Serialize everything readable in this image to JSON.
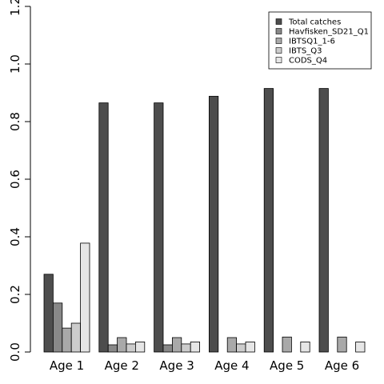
{
  "chart_data": {
    "type": "bar",
    "categories": [
      "Age 1",
      "Age 2",
      "Age 3",
      "Age 4",
      "Age 5",
      "Age 6"
    ],
    "ylim": [
      0,
      1.2
    ],
    "yticks": [
      "0.0",
      "0.2",
      "0.4",
      "0.6",
      "0.8",
      "1.0",
      "1.2"
    ],
    "legend_position": "top-right",
    "grid": false,
    "series": [
      {
        "name": "Total catches",
        "color": "#4d4d4d",
        "values": [
          0.27,
          0.865,
          0.865,
          0.888,
          0.915,
          0.915
        ]
      },
      {
        "name": "Havfisken_SD21_Q1",
        "color": "#888888",
        "values": [
          0.17,
          0.025,
          0.025,
          0,
          0,
          0
        ]
      },
      {
        "name": "IBTSQ1_1-6",
        "color": "#a9a9a9",
        "values": [
          0.083,
          0.05,
          0.05,
          0.05,
          0.052,
          0.052
        ]
      },
      {
        "name": "IBTS_Q3",
        "color": "#cccccc",
        "values": [
          0.1,
          0.028,
          0.028,
          0.028,
          0,
          0
        ]
      },
      {
        "name": "CODS_Q4",
        "color": "#e6e6e6",
        "values": [
          0.378,
          0.035,
          0.035,
          0.035,
          0.035,
          0.035
        ]
      }
    ]
  }
}
